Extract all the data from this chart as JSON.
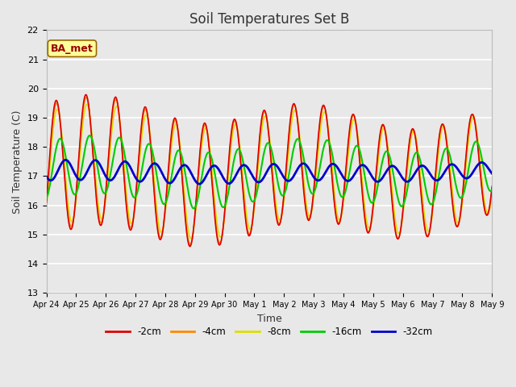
{
  "title": "Soil Temperatures Set B",
  "xlabel": "Time",
  "ylabel": "Soil Temperature (C)",
  "ylim": [
    13.0,
    22.0
  ],
  "yticks": [
    13.0,
    14.0,
    15.0,
    16.0,
    17.0,
    18.0,
    19.0,
    20.0,
    21.0,
    22.0
  ],
  "background_color": "#e8e8e8",
  "plot_bg_color": "#e8e8e8",
  "grid_color": "#ffffff",
  "annotation_text": "BA_met",
  "annotation_bg": "#ffff99",
  "annotation_border": "#996600",
  "annotation_text_color": "#990000",
  "series": {
    "2cm": {
      "color": "#dd0000",
      "lw": 1.2
    },
    "4cm": {
      "color": "#ff8800",
      "lw": 1.2
    },
    "8cm": {
      "color": "#dddd00",
      "lw": 1.2
    },
    "16cm": {
      "color": "#00cc00",
      "lw": 1.5
    },
    "32cm": {
      "color": "#0000cc",
      "lw": 2.0
    }
  },
  "legend_labels": [
    "-2cm",
    "-4cm",
    "-8cm",
    "-16cm",
    "-32cm"
  ],
  "legend_colors": [
    "#dd0000",
    "#ff8800",
    "#dddd00",
    "#00cc00",
    "#0000cc"
  ],
  "xtick_labels": [
    "Apr 24",
    "Apr 25",
    "Apr 26",
    "Apr 27",
    "Apr 28",
    "Apr 29",
    "Apr 30",
    "May 1",
    "May 2",
    "May 3",
    "May 4",
    "May 5",
    "May 6",
    "May 7",
    "May 8",
    "May 9"
  ],
  "n_points": 720,
  "figsize": [
    6.4,
    4.8
  ],
  "dpi": 100
}
